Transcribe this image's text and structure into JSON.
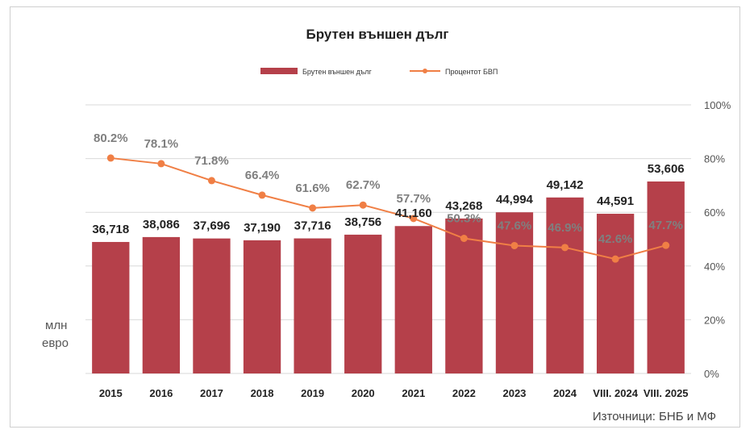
{
  "chart_data": {
    "type": "bar",
    "title": "Брутен външен дълг",
    "categories": [
      "2015",
      "2016",
      "2017",
      "2018",
      "2019",
      "2020",
      "2021",
      "2022",
      "2023",
      "2024",
      "VIII. 2024",
      "VIII. 2025"
    ],
    "series": [
      {
        "name": "Брутен външен дълг",
        "type": "bar",
        "axis": "left",
        "color": "#b5404a",
        "values": [
          36718,
          38086,
          37696,
          37190,
          37716,
          38756,
          41160,
          43268,
          44994,
          49142,
          44591,
          53606
        ],
        "labels": [
          "36,718",
          "38,086",
          "37,696",
          "37,190",
          "37,716",
          "38,756",
          "41,160",
          "43,268",
          "44,994",
          "49,142",
          "44,591",
          "53,606"
        ]
      },
      {
        "name": "Процентот БВП",
        "type": "line",
        "axis": "right",
        "color": "#f07f45",
        "values": [
          80.2,
          78.1,
          71.8,
          66.4,
          61.6,
          62.7,
          57.7,
          50.3,
          47.6,
          46.9,
          42.6,
          47.7
        ],
        "labels": [
          "80.2%",
          "78.1%",
          "71.8%",
          "66.4%",
          "61.6%",
          "62.7%",
          "57.7%",
          "50.3%",
          "47.6%",
          "46.9%",
          "42.6%",
          "47.7%"
        ]
      }
    ],
    "y_left": {
      "label_lines": [
        "млн",
        "евро"
      ],
      "ylim": [
        0,
        75000
      ]
    },
    "y_right": {
      "ylim": [
        0,
        100
      ],
      "ticks": [
        "0%",
        "20%",
        "40%",
        "60%",
        "80%",
        "100%"
      ]
    },
    "grid": true,
    "legend_position": "top-center",
    "source": "Източници: БНБ и МФ"
  }
}
